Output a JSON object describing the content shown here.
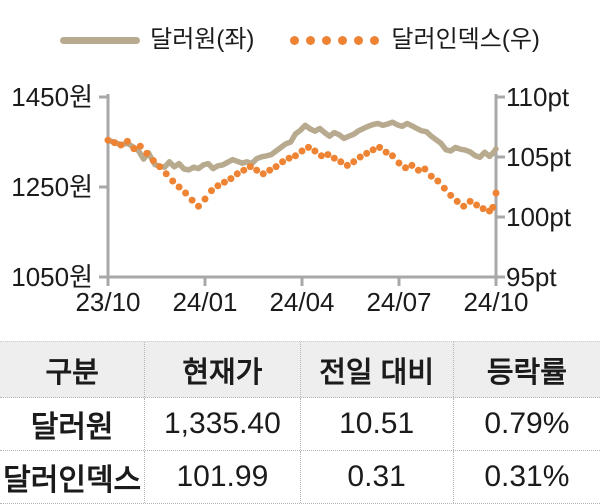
{
  "legend": {
    "series1_label": "달러원(좌)",
    "series2_label": "달러인덱스(우)"
  },
  "colors": {
    "krw_line": "#b7aa8f",
    "dxy_dot": "#ed8333",
    "axis": "#a8a8a8",
    "text": "#1b1b1b",
    "table_header_bg": "#eeeeee",
    "table_border": "#b5b5b5"
  },
  "chart_data": {
    "type": "line",
    "x_range": [
      0,
      12
    ],
    "x_ticks": [
      {
        "label": "23/10",
        "m": 0
      },
      {
        "label": "24/01",
        "m": 3
      },
      {
        "label": "24/04",
        "m": 6
      },
      {
        "label": "24/07",
        "m": 9
      },
      {
        "label": "24/10",
        "m": 12
      }
    ],
    "left_axis": {
      "min": 1050,
      "max": 1450,
      "tick_labels": [
        "1450원",
        "1250원",
        "1050원"
      ],
      "tick_values": [
        1450,
        1250,
        1050
      ]
    },
    "right_axis": {
      "min": 95,
      "max": 110,
      "tick_labels": [
        "110pt",
        "105pt",
        "100pt",
        "95pt"
      ],
      "tick_values": [
        110,
        105,
        100,
        95
      ]
    },
    "series": [
      {
        "name": "달러원(좌)",
        "axis": "left",
        "style": "solid",
        "color": "#b7aa8f",
        "points": [
          [
            0,
            1354
          ],
          [
            0.2,
            1349
          ],
          [
            0.4,
            1344
          ],
          [
            0.6,
            1347
          ],
          [
            0.8,
            1338
          ],
          [
            0.95,
            1330
          ],
          [
            1.1,
            1312
          ],
          [
            1.25,
            1326
          ],
          [
            1.45,
            1300
          ],
          [
            1.6,
            1296
          ],
          [
            1.75,
            1294
          ],
          [
            1.9,
            1306
          ],
          [
            2.05,
            1295
          ],
          [
            2.2,
            1302
          ],
          [
            2.35,
            1290
          ],
          [
            2.5,
            1288
          ],
          [
            2.65,
            1294
          ],
          [
            2.8,
            1291
          ],
          [
            2.95,
            1299
          ],
          [
            3.1,
            1302
          ],
          [
            3.25,
            1291
          ],
          [
            3.4,
            1297
          ],
          [
            3.55,
            1299
          ],
          [
            3.7,
            1305
          ],
          [
            3.85,
            1311
          ],
          [
            4,
            1307
          ],
          [
            4.15,
            1303
          ],
          [
            4.3,
            1306
          ],
          [
            4.45,
            1302
          ],
          [
            4.6,
            1313
          ],
          [
            4.75,
            1317
          ],
          [
            4.9,
            1319
          ],
          [
            5.05,
            1322
          ],
          [
            5.2,
            1330
          ],
          [
            5.35,
            1338
          ],
          [
            5.5,
            1346
          ],
          [
            5.65,
            1350
          ],
          [
            5.8,
            1368
          ],
          [
            5.95,
            1376
          ],
          [
            6.1,
            1387
          ],
          [
            6.25,
            1379
          ],
          [
            6.4,
            1374
          ],
          [
            6.55,
            1380
          ],
          [
            6.7,
            1371
          ],
          [
            6.85,
            1363
          ],
          [
            7,
            1371
          ],
          [
            7.15,
            1366
          ],
          [
            7.3,
            1358
          ],
          [
            7.45,
            1363
          ],
          [
            7.6,
            1367
          ],
          [
            7.75,
            1375
          ],
          [
            7.9,
            1380
          ],
          [
            8.05,
            1385
          ],
          [
            8.2,
            1389
          ],
          [
            8.35,
            1391
          ],
          [
            8.5,
            1387
          ],
          [
            8.65,
            1390
          ],
          [
            8.8,
            1394
          ],
          [
            8.95,
            1388
          ],
          [
            9.1,
            1385
          ],
          [
            9.25,
            1391
          ],
          [
            9.4,
            1386
          ],
          [
            9.55,
            1380
          ],
          [
            9.7,
            1375
          ],
          [
            9.85,
            1373
          ],
          [
            10,
            1363
          ],
          [
            10.15,
            1355
          ],
          [
            10.3,
            1347
          ],
          [
            10.45,
            1333
          ],
          [
            10.6,
            1330
          ],
          [
            10.75,
            1338
          ],
          [
            10.9,
            1334
          ],
          [
            11.05,
            1332
          ],
          [
            11.2,
            1328
          ],
          [
            11.35,
            1320
          ],
          [
            11.5,
            1316
          ],
          [
            11.65,
            1327
          ],
          [
            11.8,
            1318
          ],
          [
            11.95,
            1329
          ],
          [
            12,
            1335
          ]
        ]
      },
      {
        "name": "달러인덱스(우)",
        "axis": "right",
        "style": "dotted",
        "color": "#ed8333",
        "points": [
          [
            0,
            106.4
          ],
          [
            0.2,
            106.2
          ],
          [
            0.4,
            106.0
          ],
          [
            0.6,
            106.3
          ],
          [
            0.8,
            105.7
          ],
          [
            1.0,
            105.9
          ],
          [
            1.2,
            105.3
          ],
          [
            1.4,
            104.7
          ],
          [
            1.6,
            104.2
          ],
          [
            1.8,
            103.6
          ],
          [
            2.0,
            103.0
          ],
          [
            2.2,
            102.5
          ],
          [
            2.4,
            102.0
          ],
          [
            2.6,
            101.4
          ],
          [
            2.8,
            100.9
          ],
          [
            3.0,
            101.5
          ],
          [
            3.2,
            102.2
          ],
          [
            3.4,
            102.6
          ],
          [
            3.6,
            102.9
          ],
          [
            3.8,
            103.2
          ],
          [
            4.0,
            103.6
          ],
          [
            4.2,
            103.9
          ],
          [
            4.4,
            104.2
          ],
          [
            4.6,
            103.9
          ],
          [
            4.8,
            103.6
          ],
          [
            5.0,
            103.9
          ],
          [
            5.2,
            104.2
          ],
          [
            5.4,
            104.6
          ],
          [
            5.6,
            104.9
          ],
          [
            5.8,
            105.1
          ],
          [
            6.0,
            105.5
          ],
          [
            6.2,
            105.8
          ],
          [
            6.4,
            105.5
          ],
          [
            6.6,
            105.1
          ],
          [
            6.8,
            105.2
          ],
          [
            7.0,
            104.9
          ],
          [
            7.2,
            104.6
          ],
          [
            7.4,
            104.3
          ],
          [
            7.6,
            104.6
          ],
          [
            7.8,
            105.0
          ],
          [
            8.0,
            105.3
          ],
          [
            8.2,
            105.6
          ],
          [
            8.4,
            105.8
          ],
          [
            8.6,
            105.4
          ],
          [
            8.8,
            105.1
          ],
          [
            9.0,
            104.5
          ],
          [
            9.2,
            104.1
          ],
          [
            9.4,
            104.3
          ],
          [
            9.6,
            103.9
          ],
          [
            9.8,
            104.0
          ],
          [
            10.0,
            103.4
          ],
          [
            10.2,
            103.0
          ],
          [
            10.4,
            102.4
          ],
          [
            10.6,
            101.8
          ],
          [
            10.8,
            101.3
          ],
          [
            11.0,
            100.9
          ],
          [
            11.2,
            101.3
          ],
          [
            11.4,
            101.0
          ],
          [
            11.6,
            100.7
          ],
          [
            11.8,
            100.5
          ],
          [
            11.9,
            100.8
          ],
          [
            12,
            102.0
          ]
        ]
      }
    ]
  },
  "table": {
    "headers": [
      "구분",
      "현재가",
      "전일 대비",
      "등락률"
    ],
    "rows": [
      {
        "label": "달러원",
        "cells": [
          "1,335.40",
          "10.51",
          "0.79%"
        ]
      },
      {
        "label": "달러인덱스",
        "cells": [
          "101.99",
          "0.31",
          "0.31%"
        ]
      }
    ]
  }
}
